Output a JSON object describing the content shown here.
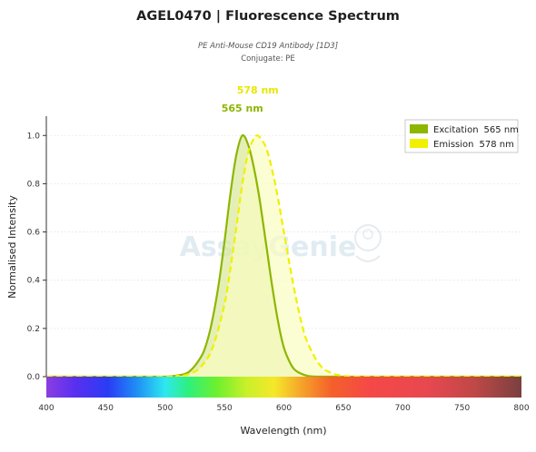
{
  "header": {
    "title": "AGEL0470  |  Fluorescence Spectrum",
    "subtitle": "PE Anti-Mouse CD19 Antibody [1D3]",
    "conjugate": "Conjugate: PE"
  },
  "watermark": "AssayGenie",
  "chart_data": {
    "type": "area",
    "xlabel": "Wavelength (nm)",
    "ylabel": "Normalised Intensity",
    "xlim": [
      400,
      800
    ],
    "ylim": [
      0,
      1.05
    ],
    "x_ticks": [
      400,
      450,
      500,
      550,
      600,
      650,
      700,
      750,
      800
    ],
    "y_ticks": [
      0.0,
      0.2,
      0.4,
      0.6,
      0.8,
      1.0
    ],
    "grid": true,
    "legend_position": "top-right",
    "series": [
      {
        "name": "Excitation",
        "legend_label": "565 nm",
        "peak_label": "565 nm",
        "peak": 565,
        "style": "solid",
        "color": "#8db600",
        "fill": "#d9e89a",
        "x": [
          490,
          500,
          510,
          520,
          530,
          535,
          540,
          545,
          550,
          555,
          560,
          565,
          570,
          575,
          580,
          585,
          590,
          595,
          600,
          605,
          610,
          620,
          630,
          640
        ],
        "y": [
          0.0,
          0.0,
          0.005,
          0.02,
          0.08,
          0.14,
          0.24,
          0.38,
          0.56,
          0.76,
          0.92,
          1.0,
          0.96,
          0.86,
          0.72,
          0.55,
          0.38,
          0.23,
          0.12,
          0.06,
          0.025,
          0.003,
          0.0,
          0.0
        ]
      },
      {
        "name": "Emission",
        "legend_label": "578 nm",
        "peak_label": "578 nm",
        "peak": 578,
        "style": "dashed",
        "color": "#f0f000",
        "fill": "#fafcc0",
        "x": [
          500,
          510,
          520,
          530,
          540,
          550,
          555,
          560,
          565,
          570,
          575,
          578,
          580,
          585,
          590,
          595,
          600,
          605,
          610,
          615,
          620,
          630,
          640,
          650,
          660,
          680
        ],
        "y": [
          0.0,
          0.003,
          0.01,
          0.04,
          0.12,
          0.3,
          0.45,
          0.62,
          0.8,
          0.93,
          0.99,
          1.0,
          0.99,
          0.95,
          0.86,
          0.74,
          0.6,
          0.46,
          0.33,
          0.22,
          0.14,
          0.05,
          0.015,
          0.004,
          0.0,
          0.0
        ]
      }
    ]
  }
}
